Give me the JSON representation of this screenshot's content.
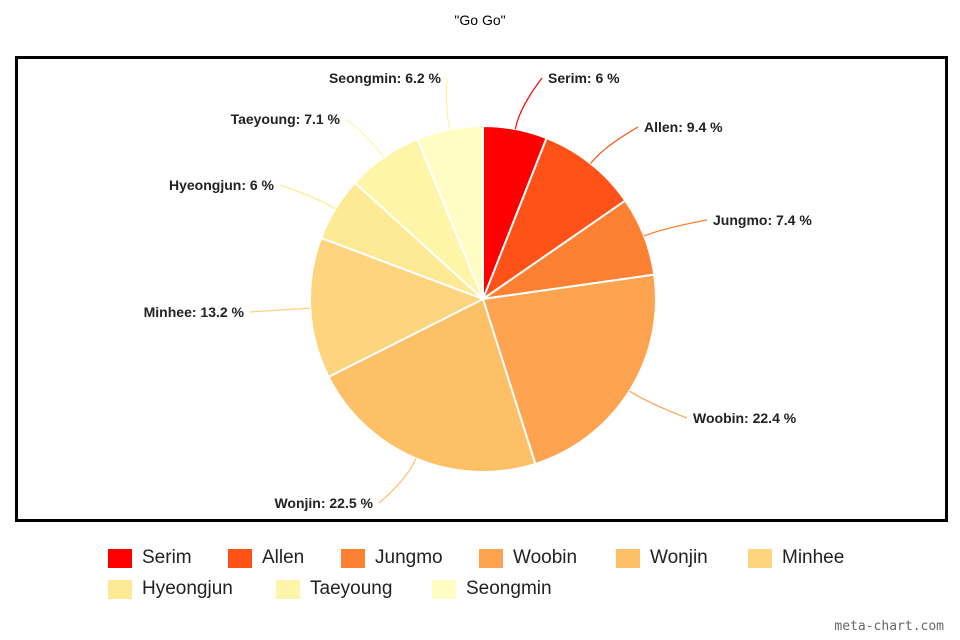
{
  "chart_data": {
    "type": "pie",
    "title": "\"Go Go\"",
    "categories": [
      "Serim",
      "Allen",
      "Jungmo",
      "Woobin",
      "Wonjin",
      "Minhee",
      "Hyeongjun",
      "Taeyoung",
      "Seongmin"
    ],
    "values": [
      6,
      9.4,
      7.4,
      22.4,
      22.5,
      13.2,
      6,
      7.1,
      6.2
    ],
    "labels": [
      "Serim: 6 %",
      "Allen: 9.4 %",
      "Jungmo: 7.4 %",
      "Woobin: 22.4 %",
      "Wonjin: 22.5 %",
      "Minhee: 13.2 %",
      "Hyeongjun: 6 %",
      "Taeyoung: 7.1 %",
      "Seongmin: 6.2 %"
    ],
    "colors": [
      "#ff0000",
      "#ff5219",
      "#fe8133",
      "#fea34f",
      "#fec066",
      "#fed47e",
      "#feea95",
      "#fef5a8",
      "#fffdc4"
    ],
    "legend_position": "bottom"
  },
  "watermark": "meta-chart.com"
}
